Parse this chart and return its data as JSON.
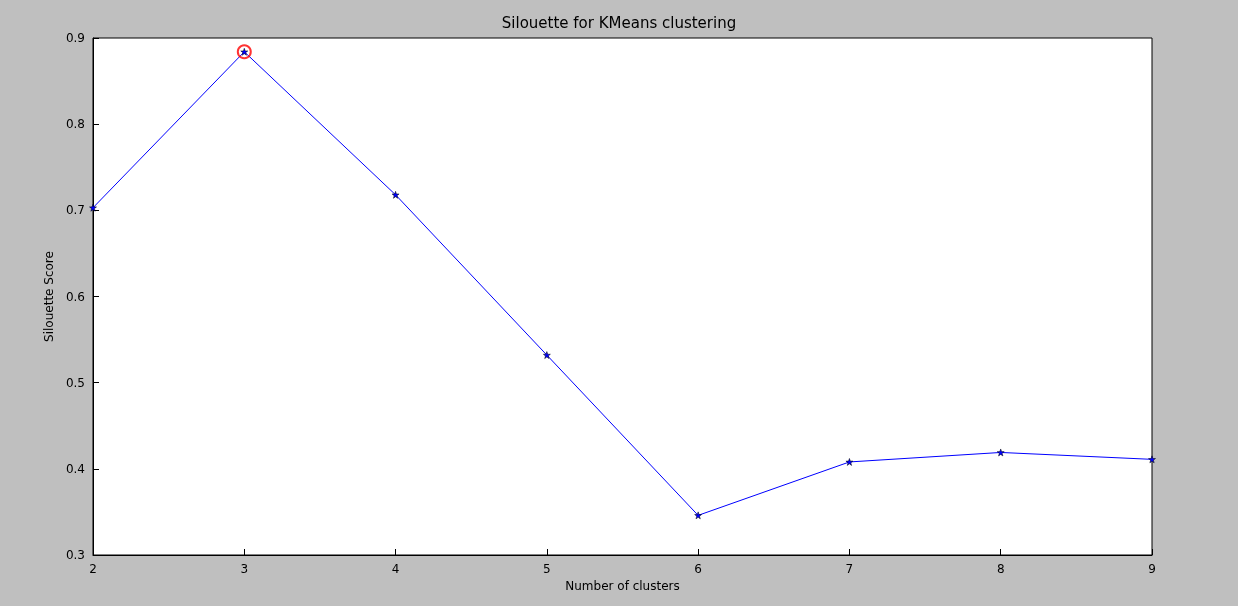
{
  "chart_data": {
    "type": "line",
    "title": "Silouette for KMeans clustering",
    "xlabel": "Number of clusters",
    "ylabel": "Silouette Score",
    "x": [
      2,
      3,
      4,
      5,
      6,
      7,
      8,
      9
    ],
    "series": [
      {
        "color": "#0000ff",
        "values": [
          0.703,
          0.884,
          0.718,
          0.532,
          0.346,
          0.408,
          0.419,
          0.411
        ]
      },
      {
        "type": "scatter",
        "marker": "circle",
        "color": "#ff0000",
        "x": [
          3
        ],
        "values": [
          0.884
        ]
      }
    ],
    "marker": "star",
    "xlim": [
      2,
      9
    ],
    "xticks": [
      2,
      3,
      4,
      5,
      6,
      7,
      8,
      9
    ],
    "ylim": [
      0.3,
      0.9
    ],
    "yticks": [
      0.3,
      0.4,
      0.5,
      0.6,
      0.7,
      0.8,
      0.9
    ],
    "grid": false
  }
}
